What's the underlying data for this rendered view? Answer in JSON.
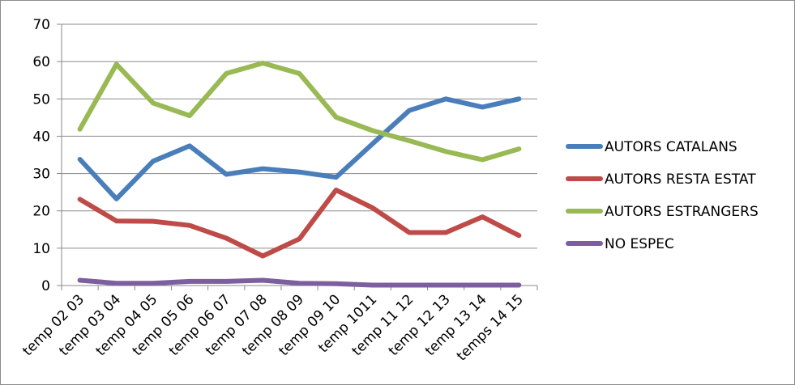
{
  "chart_data": {
    "type": "line",
    "title": "",
    "xlabel": "",
    "ylabel": "",
    "categories": [
      "temp 02 03",
      "temp 03 04",
      "temp 04 05",
      "temp 05 06",
      "temp 06 07",
      "temp 07 08",
      "temp 08 09",
      "temp 09 10",
      "temp 1011",
      "temp 11 12",
      "temp 12 13",
      "temp 13 14",
      "temps 14 15"
    ],
    "ylim": [
      0,
      70
    ],
    "yticks": [
      0,
      10,
      20,
      30,
      40,
      50,
      60,
      70
    ],
    "grid": true,
    "legend_position": "right",
    "series": [
      {
        "name": "AUTORS CATALANS",
        "color": "#4a7ebb",
        "values": [
          33.8,
          23.2,
          33.3,
          37.4,
          29.8,
          31.3,
          30.4,
          29.0,
          38.0,
          46.9,
          50.0,
          47.8,
          50.0
        ]
      },
      {
        "name": "AUTORS RESTA ESTAT",
        "color": "#be4b48",
        "values": [
          23.1,
          17.3,
          17.2,
          16.1,
          12.7,
          7.9,
          12.5,
          25.6,
          20.8,
          14.2,
          14.2,
          18.4,
          13.4
        ]
      },
      {
        "name": "AUTORS ESTRANGERS",
        "color": "#98b954",
        "values": [
          41.9,
          59.3,
          48.9,
          45.5,
          56.8,
          59.6,
          56.8,
          45.1,
          41.5,
          38.8,
          35.9,
          33.7,
          36.6
        ]
      },
      {
        "name": "NO ESPEC",
        "color": "#7d5fa0",
        "values": [
          1.4,
          0.6,
          0.6,
          1.1,
          1.1,
          1.4,
          0.6,
          0.5,
          0.1,
          0.1,
          0.1,
          0.1,
          0.1
        ]
      }
    ]
  }
}
